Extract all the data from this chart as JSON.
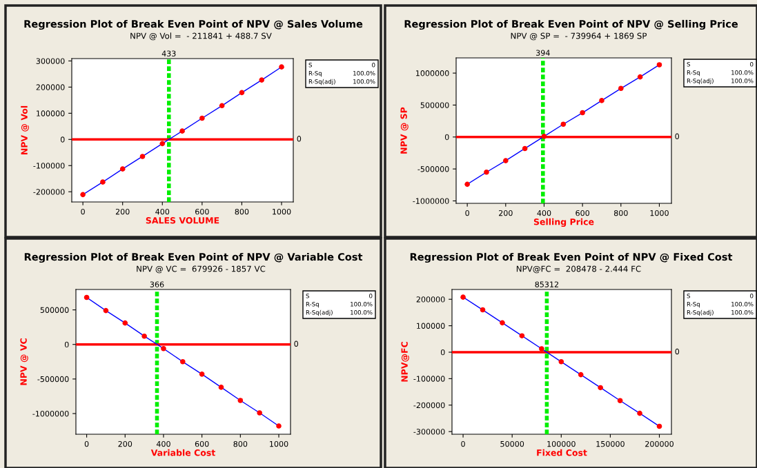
{
  "chart_data": [
    {
      "type": "scatter",
      "title": "Regression Plot of Break Even Point of NPV @ Sales Volume",
      "subtitle": "NPV @ Vol =  - 211841 + 488.7 SV",
      "xlabel": "SALES VOLUME",
      "ylabel": "NPV @ Vol",
      "x": [
        0,
        100,
        200,
        300,
        400,
        500,
        600,
        700,
        800,
        900,
        1000
      ],
      "series": [
        {
          "color": "#ff0000",
          "marker": "circle",
          "values": [
            -211000,
            -163000,
            -113000,
            -65000,
            -16000,
            32000,
            81000,
            129000,
            179000,
            227000,
            277000
          ]
        },
        {
          "type": "line",
          "color": "#0000ff",
          "values": [
            -211000,
            -163000,
            -113000,
            -65000,
            -16000,
            32000,
            81000,
            129000,
            179000,
            227000,
            277000
          ]
        }
      ],
      "xlim": [
        -56,
        1059
      ],
      "ylim": [
        -239000,
        309000
      ],
      "xticks": [
        0,
        200,
        400,
        600,
        800,
        1000
      ],
      "yticks": [
        -200000,
        -100000,
        0,
        100000,
        200000,
        300000
      ],
      "ref_lines": [
        {
          "axis": "x",
          "value": 433,
          "label": "433",
          "color": "#00ee00",
          "line_style": "dashed"
        },
        {
          "axis": "y",
          "value": 0,
          "label": "0",
          "color": "#ff0000",
          "line_style": "solid"
        }
      ],
      "annotations": [
        "S",
        "0",
        "R-Sq",
        "100.0%",
        "R-Sq(adj)",
        "100.0%"
      ]
    },
    {
      "type": "scatter",
      "title": "Regression Plot of Break Even Point of NPV @ Selling Price",
      "subtitle": "NPV @ SP =  - 739964 + 1869 SP",
      "xlabel": "Selling Price",
      "ylabel": "NPV @ SP",
      "x": [
        0,
        100,
        200,
        300,
        400,
        500,
        600,
        700,
        800,
        900,
        1000
      ],
      "series": [
        {
          "color": "#ff0000",
          "marker": "circle",
          "values": [
            -740000,
            -550000,
            -370000,
            -180000,
            10000,
            200000,
            380000,
            570000,
            760000,
            940000,
            1130000
          ]
        },
        {
          "type": "line",
          "color": "#0000ff",
          "values": [
            -740000,
            -550000,
            -370000,
            -180000,
            10000,
            200000,
            380000,
            570000,
            760000,
            940000,
            1130000
          ]
        }
      ],
      "xlim": [
        -58,
        1063
      ],
      "ylim": [
        -1038000,
        1238000
      ],
      "xticks": [
        0,
        200,
        400,
        600,
        800,
        1000
      ],
      "yticks": [
        -1000000,
        -500000,
        0,
        500000,
        1000000
      ],
      "ref_lines": [
        {
          "axis": "x",
          "value": 394,
          "label": "394",
          "color": "#00ee00",
          "line_style": "dashed"
        },
        {
          "axis": "y",
          "value": 0,
          "label": "0",
          "color": "#ff0000",
          "line_style": "solid"
        }
      ],
      "annotations": [
        "S",
        "0",
        "R-Sq",
        "100.0%",
        "R-Sq(adj)",
        "100.0%"
      ]
    },
    {
      "type": "scatter",
      "title": "Regression Plot of Break Even Point of NPV @ Variable Cost",
      "subtitle": "NPV @ VC =  679926 - 1857 VC",
      "xlabel": "Variable Cost",
      "ylabel": "NPV @ VC",
      "x": [
        0,
        100,
        200,
        300,
        400,
        500,
        600,
        700,
        800,
        900,
        1000
      ],
      "series": [
        {
          "color": "#ff0000",
          "marker": "circle",
          "values": [
            680000,
            490000,
            310000,
            120000,
            -60000,
            -250000,
            -430000,
            -620000,
            -810000,
            -990000,
            -1180000
          ]
        },
        {
          "type": "line",
          "color": "#0000ff",
          "values": [
            680000,
            490000,
            310000,
            120000,
            -60000,
            -250000,
            -430000,
            -620000,
            -810000,
            -990000,
            -1180000
          ]
        }
      ],
      "xlim": [
        -56,
        1061
      ],
      "ylim": [
        -1299000,
        795000
      ],
      "xticks": [
        0,
        200,
        400,
        600,
        800,
        1000
      ],
      "yticks": [
        -1000000,
        -500000,
        0,
        500000
      ],
      "ref_lines": [
        {
          "axis": "x",
          "value": 366,
          "label": "366",
          "color": "#00ee00",
          "line_style": "dashed"
        },
        {
          "axis": "y",
          "value": 0,
          "label": "0",
          "color": "#ff0000",
          "line_style": "solid"
        }
      ],
      "annotations": [
        "S",
        "0",
        "R-Sq",
        "100.0%",
        "R-Sq(adj)",
        "100.0%"
      ]
    },
    {
      "type": "scatter",
      "title": "Regression Plot of Break Even Point of NPV @ Fixed Cost",
      "subtitle": "NPV@FC =  208478 - 2.444 FC",
      "xlabel": "Fixed Cost",
      "ylabel": "NPV@FC",
      "x": [
        0,
        20000,
        40000,
        60000,
        80000,
        100000,
        120000,
        140000,
        160000,
        180000,
        200000
      ],
      "series": [
        {
          "color": "#ff0000",
          "marker": "circle",
          "values": [
            208000,
            160000,
            111000,
            62000,
            13000,
            -36000,
            -85000,
            -134000,
            -183000,
            -231000,
            -280000
          ]
        },
        {
          "type": "line",
          "color": "#0000ff",
          "values": [
            208000,
            160000,
            111000,
            62000,
            13000,
            -36000,
            -85000,
            -134000,
            -183000,
            -231000,
            -280000
          ]
        }
      ],
      "xlim": [
        -11300,
        212300
      ],
      "ylim": [
        -310000,
        237000
      ],
      "xticks": [
        0,
        50000,
        100000,
        150000,
        200000
      ],
      "yticks": [
        -300000,
        -200000,
        -100000,
        0,
        100000,
        200000
      ],
      "ref_lines": [
        {
          "axis": "x",
          "value": 85312,
          "label": "85312",
          "color": "#00ee00",
          "line_style": "dashed"
        },
        {
          "axis": "y",
          "value": 0,
          "label": "0",
          "color": "#ff0000",
          "line_style": "solid"
        }
      ],
      "annotations": [
        "S",
        "0",
        "R-Sq",
        "100.0%",
        "R-Sq(adj)",
        "100.0%"
      ]
    }
  ]
}
